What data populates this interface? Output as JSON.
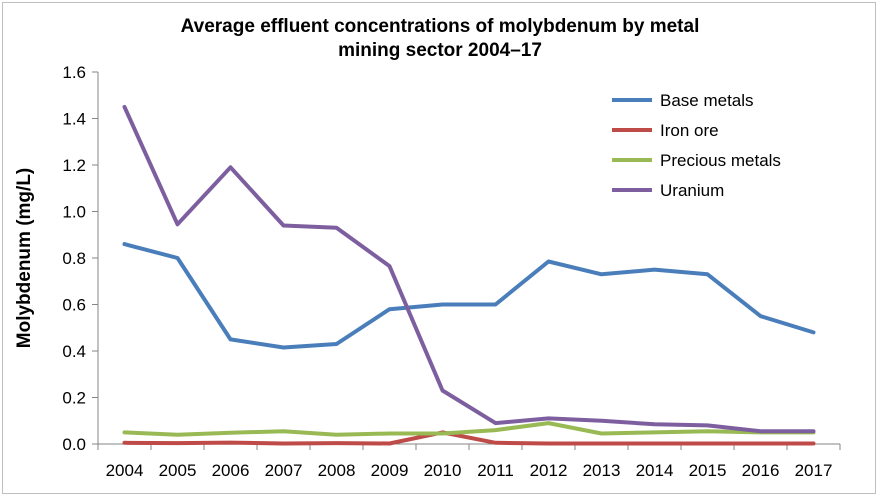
{
  "chart_data": {
    "type": "line",
    "title_lines": [
      "Average effluent concentrations of molybdenum by metal",
      "mining sector 2004–17"
    ],
    "xlabel": "",
    "ylabel": "Molybdenum (mg/L)",
    "ylim": [
      0,
      1.6
    ],
    "yticks": [
      "0.0",
      "0.2",
      "0.4",
      "0.6",
      "0.8",
      "1.0",
      "1.2",
      "1.4",
      "1.6"
    ],
    "categories": [
      "2004",
      "2005",
      "2006",
      "2007",
      "2008",
      "2009",
      "2010",
      "2011",
      "2012",
      "2013",
      "2014",
      "2015",
      "2016",
      "2017"
    ],
    "grid": false,
    "legend_position": "top-right",
    "series": [
      {
        "name": "Base metals",
        "color": "#4a7ebb",
        "values": [
          0.86,
          0.8,
          0.45,
          0.415,
          0.43,
          0.58,
          0.6,
          0.6,
          0.785,
          0.73,
          0.75,
          0.73,
          0.55,
          0.48
        ]
      },
      {
        "name": "Iron ore",
        "color": "#be4b48",
        "values": [
          0.005,
          0.004,
          0.006,
          0.002,
          0.004,
          0.002,
          0.05,
          0.005,
          0.002,
          0.002,
          0.002,
          0.002,
          0.002,
          0.002
        ]
      },
      {
        "name": "Precious metals",
        "color": "#98b954",
        "values": [
          0.05,
          0.04,
          0.048,
          0.055,
          0.04,
          0.045,
          0.045,
          0.06,
          0.09,
          0.045,
          0.05,
          0.055,
          0.05,
          0.05
        ]
      },
      {
        "name": "Uranium",
        "color": "#7d5fa0",
        "values": [
          1.45,
          0.945,
          1.19,
          0.94,
          0.93,
          0.765,
          0.23,
          0.09,
          0.11,
          0.1,
          0.085,
          0.08,
          0.055,
          0.055
        ]
      }
    ]
  }
}
